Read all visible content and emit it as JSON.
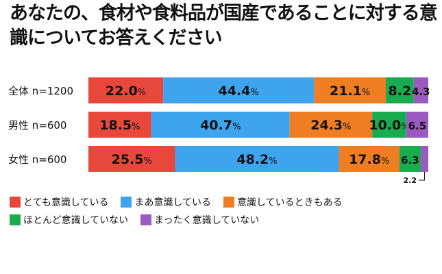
{
  "title": "あなたの、食材や食料品が国産であることに対する意識についてお答えください",
  "chart_data": {
    "type": "bar",
    "orientation": "horizontal",
    "stacked": true,
    "percent_stacked": true,
    "categories": [
      "全体 n=1200",
      "男性 n=600",
      "女性 n=600"
    ],
    "series": [
      {
        "name": "とても意識している",
        "color": "#e8483c",
        "values": [
          22.0,
          18.5,
          25.5
        ]
      },
      {
        "name": "まあ意識している",
        "color": "#3ea4ee",
        "values": [
          44.4,
          40.7,
          48.2
        ]
      },
      {
        "name": "意識しているときもある",
        "color": "#ef7d21",
        "values": [
          21.1,
          24.3,
          17.8
        ]
      },
      {
        "name": "ほとんど意識していない",
        "color": "#19ac4f",
        "values": [
          8.2,
          10.0,
          6.3
        ]
      },
      {
        "name": "まったく意識していない",
        "color": "#9b59c2",
        "values": [
          4.3,
          6.5,
          2.2
        ]
      }
    ],
    "value_labels": [
      [
        "22.0",
        "44.4",
        "21.1",
        "8.2",
        "4.3"
      ],
      [
        "18.5",
        "40.7",
        "24.3",
        "10.0",
        "6.5"
      ],
      [
        "25.5",
        "48.2",
        "17.8",
        "6.3",
        "2.2"
      ]
    ],
    "percent_sign": "%",
    "legend_position": "bottom",
    "grid": false
  }
}
